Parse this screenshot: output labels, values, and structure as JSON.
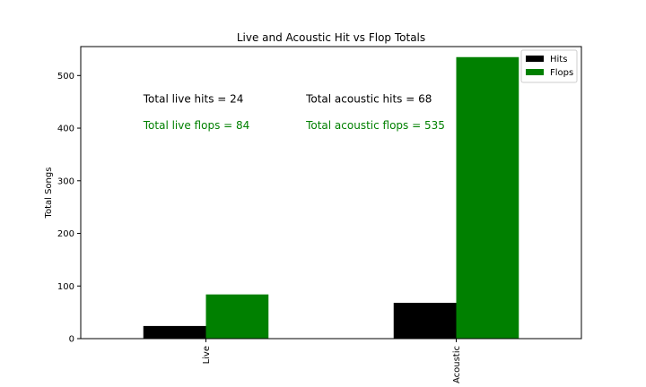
{
  "chart_data": {
    "type": "bar",
    "title": "Live and Acoustic Hit vs Flop Totals",
    "xlabel": "",
    "ylabel": "Total Songs",
    "categories": [
      "Live",
      "Acoustic"
    ],
    "series": [
      {
        "name": "Hits",
        "values": [
          24,
          68
        ],
        "color": "#000000"
      },
      {
        "name": "Flops",
        "values": [
          84,
          535
        ],
        "color": "#008000"
      }
    ],
    "ylim": [
      0,
      555
    ],
    "yticks": [
      0,
      100,
      200,
      300,
      400,
      500
    ],
    "grid": false,
    "legend": "top-right",
    "annotations": [
      {
        "text": "Total live hits = 24",
        "color": "#000000",
        "x": -0.25,
        "y": 455
      },
      {
        "text": "Total live flops = 84",
        "color": "#008000",
        "x": -0.25,
        "y": 405
      },
      {
        "text": "Total acoustic hits = 68",
        "color": "#000000",
        "x": 0.4,
        "y": 455
      },
      {
        "text": "Total acoustic flops = 535",
        "color": "#008000",
        "x": 0.4,
        "y": 405
      }
    ]
  }
}
